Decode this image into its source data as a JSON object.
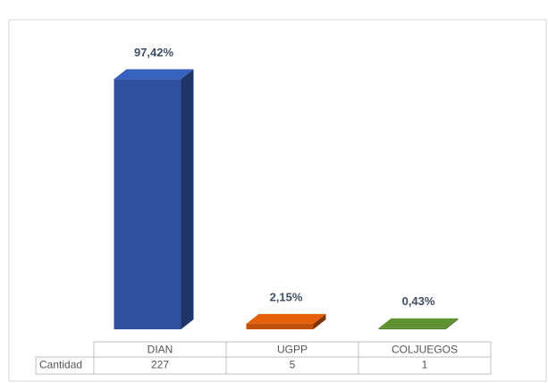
{
  "chart_data": {
    "type": "bar3d",
    "categories": [
      "DIAN",
      "UGPP",
      "COLJUEGOS"
    ],
    "values": [
      97.42,
      2.15,
      0.43
    ],
    "value_labels": [
      "97,42%",
      "2,15%",
      "0,43%"
    ],
    "colors": [
      "#2f52a0",
      "#c0500a",
      "#4f7a28"
    ],
    "table": {
      "row_label": "Cantidad",
      "values": [
        227,
        5,
        1
      ]
    }
  }
}
